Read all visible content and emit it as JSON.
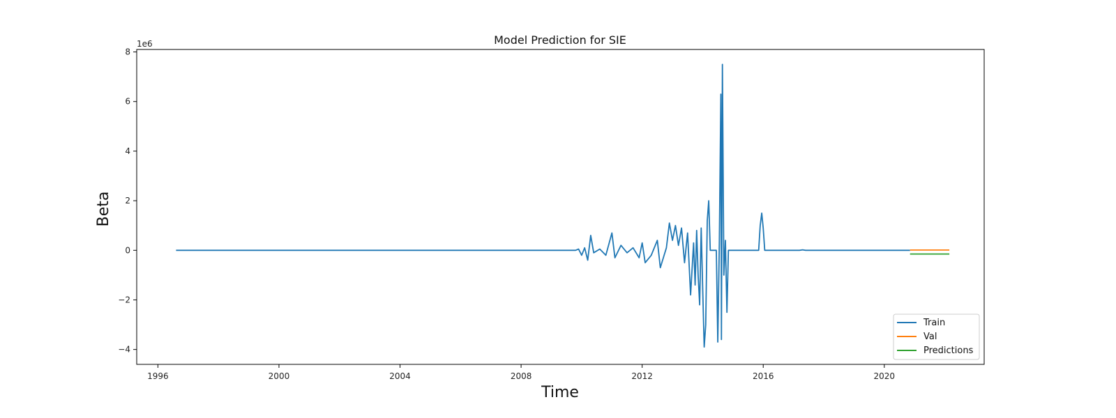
{
  "chart_data": {
    "type": "line",
    "title": "Model Prediction for SIE",
    "xlabel": "Time",
    "ylabel": "Beta",
    "y_offset_text": "1e6",
    "xlim": [
      1995.3,
      2023.3
    ],
    "ylim": [
      -4.6,
      8.1
    ],
    "y_scale_note": "values in units of 1e6",
    "x_ticks": [
      1996,
      2000,
      2004,
      2008,
      2012,
      2016,
      2020
    ],
    "x_tick_labels": [
      "1996",
      "2000",
      "2004",
      "2008",
      "2012",
      "2016",
      "2020"
    ],
    "y_ticks": [
      -4,
      -2,
      0,
      2,
      4,
      6,
      8
    ],
    "y_tick_labels": [
      "−4",
      "−2",
      "0",
      "2",
      "4",
      "6",
      "8"
    ],
    "grid": false,
    "legend_position": "lower-right",
    "series": [
      {
        "name": "Train",
        "color": "#1f77b4",
        "points": [
          [
            1996.6,
            0
          ],
          [
            2009.8,
            0
          ],
          [
            2009.9,
            0.05
          ],
          [
            2010.0,
            -0.2
          ],
          [
            2010.1,
            0.1
          ],
          [
            2010.2,
            -0.4
          ],
          [
            2010.3,
            0.6
          ],
          [
            2010.4,
            -0.1
          ],
          [
            2010.6,
            0.05
          ],
          [
            2010.8,
            -0.2
          ],
          [
            2011.0,
            0.7
          ],
          [
            2011.1,
            -0.3
          ],
          [
            2011.3,
            0.2
          ],
          [
            2011.5,
            -0.1
          ],
          [
            2011.7,
            0.1
          ],
          [
            2011.9,
            -0.3
          ],
          [
            2012.0,
            0.3
          ],
          [
            2012.1,
            -0.5
          ],
          [
            2012.3,
            -0.2
          ],
          [
            2012.5,
            0.4
          ],
          [
            2012.6,
            -0.7
          ],
          [
            2012.8,
            0.1
          ],
          [
            2012.9,
            1.1
          ],
          [
            2013.0,
            0.4
          ],
          [
            2013.1,
            1.0
          ],
          [
            2013.2,
            0.2
          ],
          [
            2013.3,
            0.9
          ],
          [
            2013.4,
            -0.5
          ],
          [
            2013.5,
            0.7
          ],
          [
            2013.6,
            -1.8
          ],
          [
            2013.7,
            0.3
          ],
          [
            2013.75,
            -1.4
          ],
          [
            2013.8,
            0.8
          ],
          [
            2013.85,
            -1.0
          ],
          [
            2013.9,
            -2.2
          ],
          [
            2013.95,
            0.9
          ],
          [
            2014.0,
            -1.5
          ],
          [
            2014.05,
            -3.9
          ],
          [
            2014.1,
            -3.0
          ],
          [
            2014.15,
            1.2
          ],
          [
            2014.2,
            2.0
          ],
          [
            2014.25,
            0
          ],
          [
            2014.45,
            0
          ],
          [
            2014.5,
            -3.7
          ],
          [
            2014.55,
            0.3
          ],
          [
            2014.6,
            6.3
          ],
          [
            2014.62,
            -3.6
          ],
          [
            2014.65,
            7.5
          ],
          [
            2014.7,
            -1.0
          ],
          [
            2014.75,
            0.4
          ],
          [
            2014.8,
            -2.5
          ],
          [
            2014.85,
            0
          ],
          [
            2015.85,
            0
          ],
          [
            2015.9,
            1.0
          ],
          [
            2015.95,
            1.5
          ],
          [
            2016.0,
            0.9
          ],
          [
            2016.05,
            0
          ],
          [
            2017.2,
            0
          ],
          [
            2017.3,
            0.02
          ],
          [
            2017.4,
            0
          ],
          [
            2020.85,
            0
          ]
        ]
      },
      {
        "name": "Val",
        "color": "#ff7f0e",
        "points": [
          [
            2020.85,
            0.01
          ],
          [
            2022.15,
            0.01
          ]
        ]
      },
      {
        "name": "Predictions",
        "color": "#2ca02c",
        "points": [
          [
            2020.85,
            -0.15
          ],
          [
            2022.15,
            -0.15
          ]
        ]
      }
    ]
  }
}
